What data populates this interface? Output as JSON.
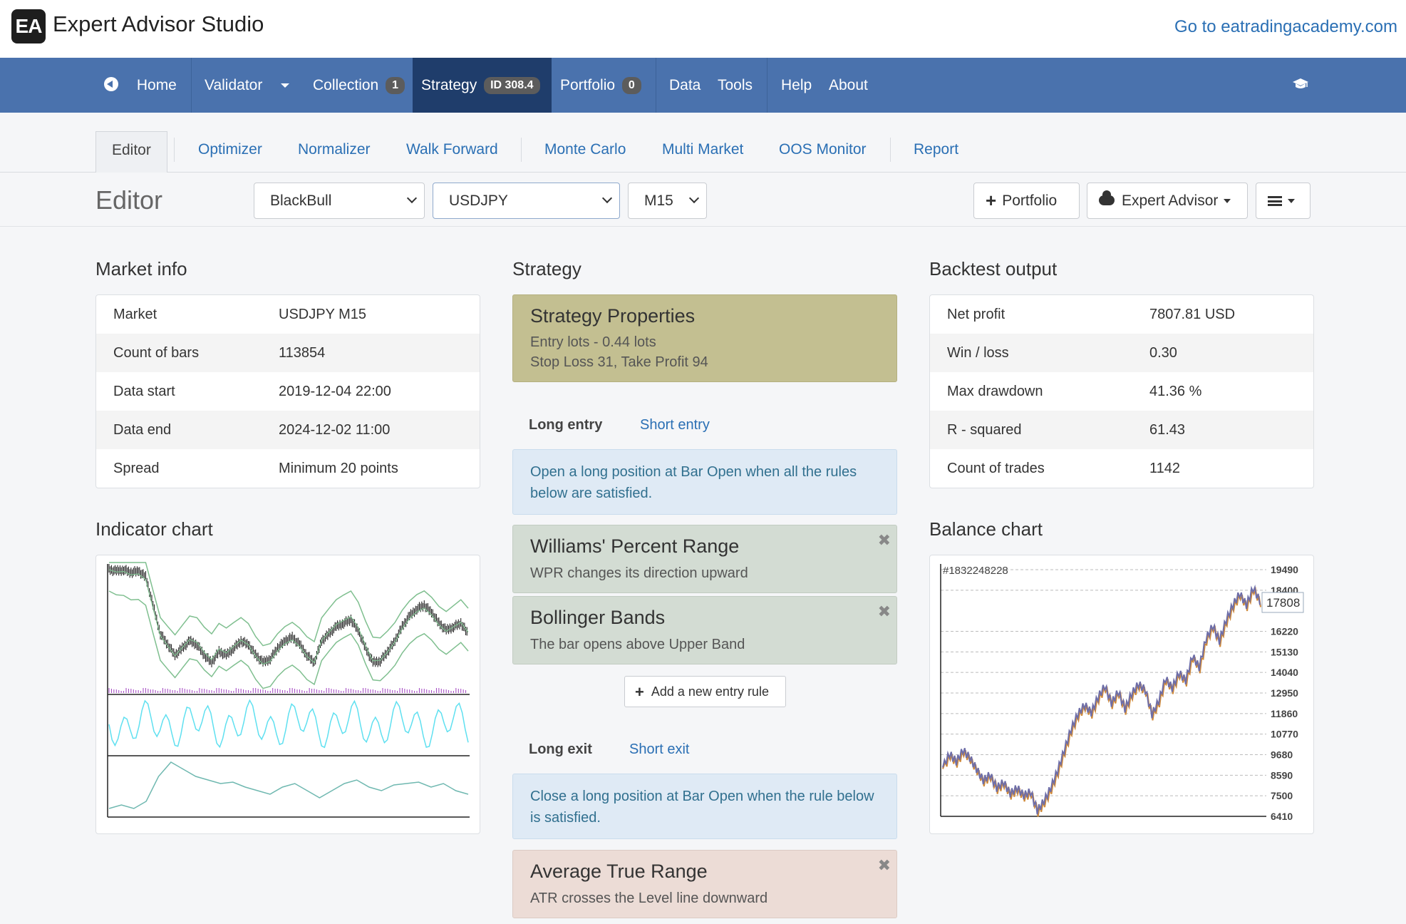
{
  "app": {
    "logo_text": "EA",
    "title": "Expert Advisor Studio",
    "site_link": "Go to eatradingacademy.com"
  },
  "nav": {
    "home": "Home",
    "validator": "Validator",
    "collection": "Collection",
    "collection_count": "1",
    "strategy": "Strategy",
    "strategy_id": "ID 308.4",
    "portfolio": "Portfolio",
    "portfolio_count": "0",
    "data": "Data",
    "tools": "Tools",
    "help": "Help",
    "about": "About"
  },
  "subtabs": [
    "Editor",
    "Optimizer",
    "Normalizer",
    "Walk Forward",
    "Monte Carlo",
    "Multi Market",
    "OOS Monitor",
    "Report"
  ],
  "toolbar": {
    "title": "Editor",
    "broker": "BlackBull",
    "symbol": "USDJPY",
    "period": "M15",
    "portfolio_btn": "Portfolio",
    "ea_btn": "Expert Advisor"
  },
  "market_info": {
    "title": "Market info",
    "rows": [
      {
        "k": "Market",
        "v": "USDJPY M15"
      },
      {
        "k": "Count of bars",
        "v": "113854"
      },
      {
        "k": "Data start",
        "v": "2019-12-04 22:00"
      },
      {
        "k": "Data end",
        "v": "2024-12-02 11:00"
      },
      {
        "k": "Spread",
        "v": "Minimum 20 points"
      }
    ]
  },
  "strategy": {
    "title": "Strategy",
    "props_title": "Strategy Properties",
    "props_line1": "Entry lots - 0.44 lots",
    "props_line2": "Stop Loss 31, Take Profit 94",
    "long_entry": "Long entry",
    "short_entry": "Short entry",
    "entry_info": "Open a long position at Bar Open when all the rules below are satisfied.",
    "rule1_title": "Williams' Percent Range",
    "rule1_desc": "WPR changes its direction upward",
    "rule2_title": "Bollinger Bands",
    "rule2_desc": "The bar opens above Upper Band",
    "add_rule": "Add a new entry rule",
    "long_exit": "Long exit",
    "short_exit": "Short exit",
    "exit_info": "Close a long position at Bar Open when the rule below is satisfied.",
    "exit_rule_title": "Average True Range",
    "exit_rule_desc": "ATR crosses the Level line downward",
    "close_symbol": "✖"
  },
  "backtest": {
    "title": "Backtest output",
    "rows": [
      {
        "k": "Net profit",
        "v": "7807.81 USD"
      },
      {
        "k": "Win / loss",
        "v": "0.30"
      },
      {
        "k": "Max drawdown",
        "v": "41.36 %"
      },
      {
        "k": "R - squared",
        "v": "61.43"
      },
      {
        "k": "Count of trades",
        "v": "1142"
      }
    ]
  },
  "indicator_chart": {
    "title": "Indicator chart"
  },
  "balance_chart": {
    "title": "Balance chart",
    "id_label": "#1832248228",
    "last_value": "17808",
    "y_ticks": [
      "19490",
      "18400",
      "16220",
      "15130",
      "14040",
      "12950",
      "11860",
      "10770",
      "9680",
      "8590",
      "7500",
      "6410"
    ]
  },
  "chart_data": {
    "type": "line",
    "title": "Balance chart",
    "ylim": [
      6410,
      19490
    ],
    "y_ticks": [
      19490,
      18400,
      16220,
      15130,
      14040,
      12950,
      11860,
      10770,
      9680,
      8590,
      7500,
      6410
    ],
    "series": [
      {
        "name": "#1832248228",
        "values": [
          9000,
          9700,
          9300,
          9900,
          9500,
          8900,
          8300,
          8600,
          7900,
          8200,
          7600,
          7900,
          7500,
          7700,
          6700,
          7200,
          7900,
          8800,
          9900,
          11000,
          11800,
          12300,
          11900,
          12700,
          13300,
          12400,
          13000,
          12100,
          12900,
          13400,
          13100,
          11800,
          12500,
          13700,
          13200,
          14000,
          13600,
          14900,
          14300,
          15800,
          16500,
          15700,
          16800,
          17600,
          18200,
          17600,
          18500,
          17808
        ]
      }
    ],
    "grid": true
  }
}
